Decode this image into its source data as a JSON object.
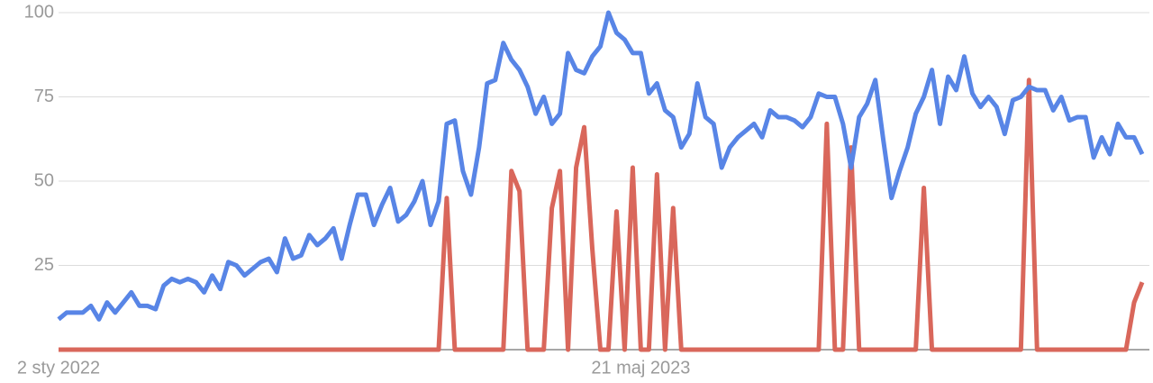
{
  "chart_data": {
    "type": "line",
    "categories": [
      "2 sty 2022",
      null,
      null,
      null,
      null,
      null,
      null,
      null,
      null,
      null,
      null,
      null,
      null,
      null,
      null,
      null,
      null,
      null,
      null,
      null,
      null,
      null,
      null,
      null,
      null,
      null,
      null,
      null,
      null,
      null,
      null,
      null,
      null,
      null,
      null,
      null,
      null,
      null,
      null,
      null,
      null,
      null,
      null,
      null,
      null,
      null,
      null,
      null,
      null,
      null,
      null,
      null,
      null,
      null,
      null,
      null,
      null,
      null,
      null,
      null,
      null,
      null,
      null,
      null,
      null,
      null,
      null,
      null,
      null,
      null,
      null,
      null,
      "21 maj 2023",
      null,
      null,
      null,
      null,
      null,
      null,
      null,
      null,
      null,
      null,
      null,
      null,
      null,
      null,
      null,
      null,
      null,
      null,
      null,
      null,
      null,
      null,
      null,
      null,
      null,
      null,
      null,
      null,
      null,
      null,
      null,
      null,
      null,
      null,
      null,
      null,
      null,
      null,
      null,
      null,
      null,
      null,
      null,
      null,
      null,
      null,
      null,
      null,
      null,
      null,
      null,
      null,
      null,
      null,
      null,
      null,
      null,
      null,
      null,
      null,
      null,
      null
    ],
    "series": [
      {
        "color": "#5885e6",
        "values": [
          9,
          11,
          11,
          11,
          13,
          9,
          14,
          11,
          14,
          17,
          13,
          13,
          12,
          19,
          21,
          20,
          21,
          20,
          17,
          22,
          18,
          26,
          25,
          22,
          24,
          26,
          27,
          23,
          33,
          27,
          28,
          34,
          31,
          33,
          36,
          27,
          37,
          46,
          46,
          37,
          43,
          48,
          38,
          40,
          44,
          50,
          37,
          44,
          67,
          68,
          53,
          46,
          60,
          79,
          80,
          91,
          86,
          83,
          78,
          70,
          75,
          67,
          70,
          88,
          83,
          82,
          87,
          90,
          100,
          94,
          92,
          88,
          88,
          76,
          79,
          71,
          69,
          60,
          64,
          79,
          69,
          67,
          54,
          60,
          63,
          65,
          67,
          63,
          71,
          69,
          69,
          68,
          66,
          69,
          76,
          75,
          75,
          67,
          54,
          69,
          73,
          80,
          62,
          45,
          53,
          60,
          70,
          75,
          83,
          67,
          81,
          77,
          87,
          76,
          72,
          75,
          72,
          64,
          74,
          75,
          78,
          77,
          77,
          71,
          75,
          68,
          69,
          69,
          57,
          63,
          58,
          67,
          63,
          63,
          58
        ]
      },
      {
        "color": "#d9675b",
        "values": [
          0,
          0,
          0,
          0,
          0,
          0,
          0,
          0,
          0,
          0,
          0,
          0,
          0,
          0,
          0,
          0,
          0,
          0,
          0,
          0,
          0,
          0,
          0,
          0,
          0,
          0,
          0,
          0,
          0,
          0,
          0,
          0,
          0,
          0,
          0,
          0,
          0,
          0,
          0,
          0,
          0,
          0,
          0,
          0,
          0,
          0,
          0,
          0,
          45,
          0,
          0,
          0,
          0,
          0,
          0,
          0,
          53,
          47,
          0,
          0,
          0,
          42,
          53,
          0,
          54,
          66,
          30,
          0,
          0,
          41,
          0,
          54,
          0,
          0,
          52,
          0,
          42,
          0,
          0,
          0,
          0,
          0,
          0,
          0,
          0,
          0,
          0,
          0,
          0,
          0,
          0,
          0,
          0,
          0,
          0,
          67,
          0,
          0,
          60,
          0,
          0,
          0,
          0,
          0,
          0,
          0,
          0,
          48,
          0,
          0,
          0,
          0,
          0,
          0,
          0,
          0,
          0,
          0,
          0,
          0,
          80,
          0,
          0,
          0,
          0,
          0,
          0,
          0,
          0,
          0,
          0,
          0,
          0,
          14,
          20
        ]
      }
    ],
    "ylim": [
      0,
      100
    ],
    "yticks": [
      25,
      50,
      75,
      100
    ],
    "grid": true
  }
}
